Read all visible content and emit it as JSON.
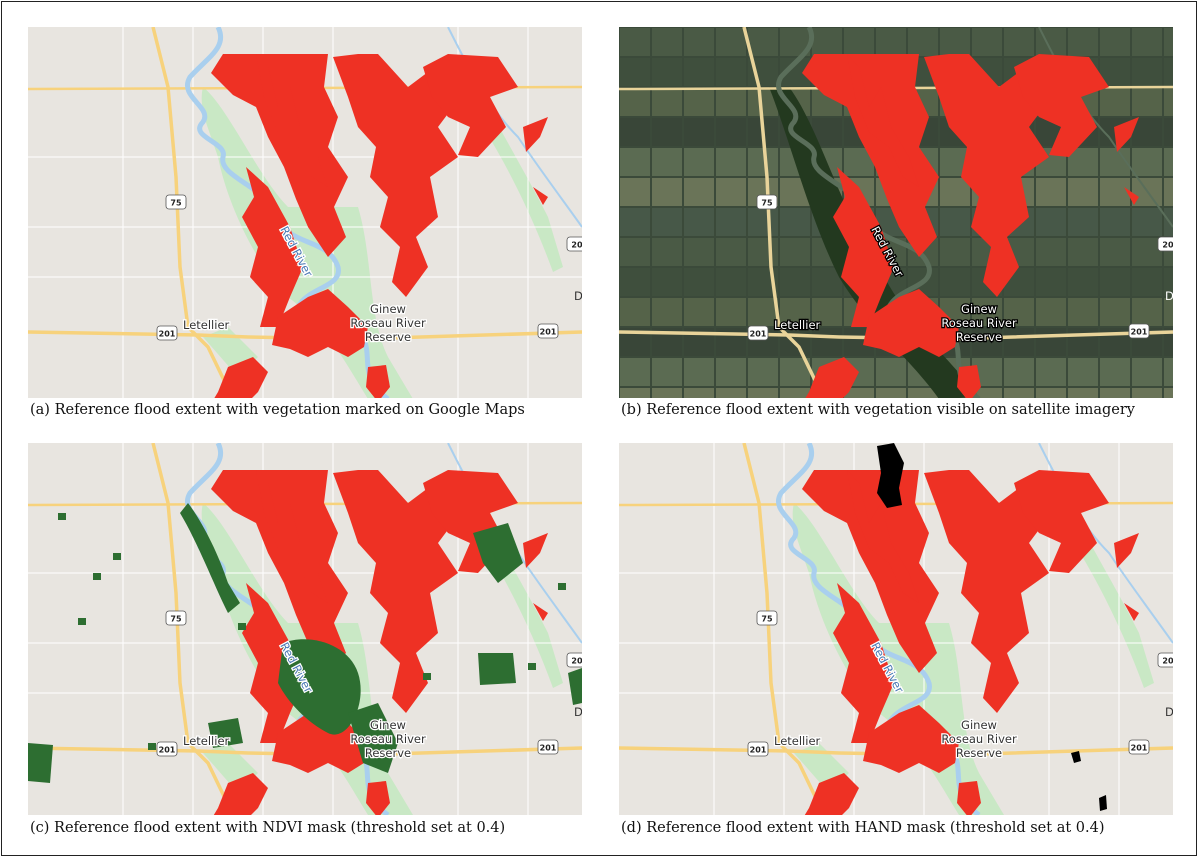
{
  "colors": {
    "map_bg": "#e8e5e0",
    "vegetation": "#c9e8c5",
    "river": "#a9cfee",
    "road_major": "#f7d27c",
    "road_minor": "#ffffff",
    "flood": "#ee3124",
    "ndvi": "#2d6e31",
    "hand": "#000000",
    "satellite_bg": "#3b4a3a"
  },
  "labels": {
    "letellier": "Letellier",
    "ginew_line1": "Ginew",
    "ginew_line2": "Roseau River",
    "ginew_line3": "Reserve",
    "river": "Red River",
    "hwy75": "75",
    "hwy201": "201",
    "hwy20": "20",
    "edge_letter": "D"
  },
  "panels": [
    {
      "id": "a",
      "caption": "(a) Reference flood extent with vegetation marked on Google Maps",
      "basemap": "map",
      "overlay": "none"
    },
    {
      "id": "b",
      "caption": "(b) Reference flood extent with vegetation visible on satellite imagery",
      "basemap": "satellite",
      "overlay": "none"
    },
    {
      "id": "c",
      "caption": "(c) Reference flood extent with NDVI mask (threshold set at 0.4)",
      "basemap": "map",
      "overlay": "ndvi"
    },
    {
      "id": "d",
      "caption": "(d) Reference flood extent with HAND mask (threshold set at 0.4)",
      "basemap": "map",
      "overlay": "hand"
    }
  ]
}
